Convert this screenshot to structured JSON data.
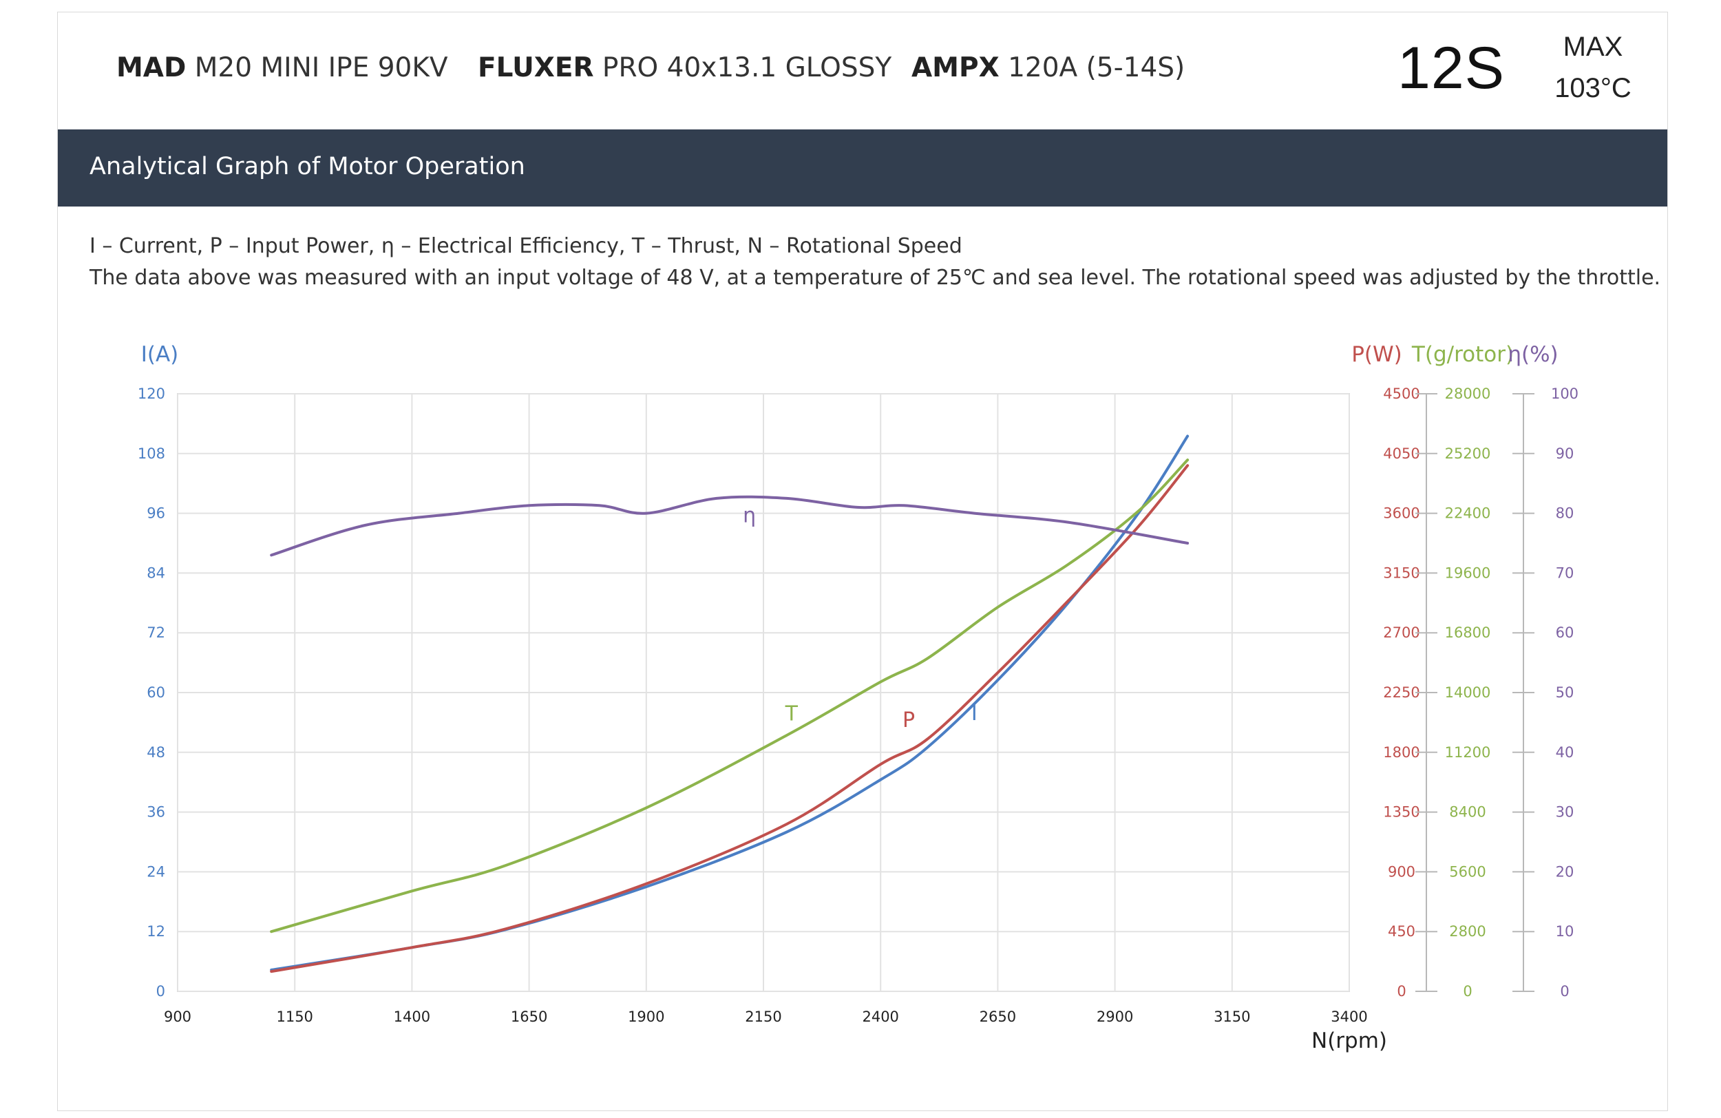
{
  "header": {
    "motor_brand": "MAD",
    "motor_model": "M20 MINI IPE 90KV",
    "prop_brand": "FLUXER",
    "prop_model": "PRO 40x13.1 GLOSSY",
    "esc_brand": "AMPX",
    "esc_model": "120A (5-14S)",
    "cells": "12S",
    "max_label": "MAX",
    "max_temp": "103°C"
  },
  "band_title": "Analytical Graph of Motor Operation",
  "legend": {
    "line1": "I – Current, P – Input Power, η – Electrical Efficiency, T – Thrust,   N – Rotational Speed",
    "line2": "The data above was measured with an input voltage of   48 V, at a temperature of 25℃ and sea level. The rotational speed was adjusted by the throttle."
  },
  "colors": {
    "current": "#4a7ec4",
    "power": "#c0504d",
    "thrust": "#8db44c",
    "efficiency": "#7d62a3",
    "header_band": "#323e4f"
  },
  "chart_data": {
    "type": "line",
    "xlabel": "N(rpm)",
    "xlim": [
      900,
      3400
    ],
    "xticks": [
      900,
      1150,
      1400,
      1650,
      1900,
      2150,
      2400,
      2650,
      2900,
      3150,
      3400
    ],
    "axes": [
      {
        "label": "I(A)",
        "side": "left",
        "lim": [
          0,
          120
        ],
        "ticks": [
          0,
          12,
          24,
          36,
          48,
          60,
          72,
          84,
          96,
          108,
          120
        ]
      },
      {
        "label": "P(W)",
        "side": "right",
        "lim": [
          0,
          4500
        ],
        "ticks": [
          0,
          450,
          900,
          1350,
          1800,
          2250,
          2700,
          3150,
          3600,
          4050,
          4500
        ]
      },
      {
        "label": "T(g/rotor)",
        "side": "right",
        "lim": [
          0,
          28000
        ],
        "ticks": [
          0,
          2800,
          5600,
          8400,
          11200,
          14000,
          16800,
          19600,
          22400,
          25200,
          28000
        ]
      },
      {
        "label": "η(%)",
        "side": "right",
        "lim": [
          0,
          100
        ],
        "ticks": [
          0,
          10,
          20,
          30,
          40,
          50,
          60,
          70,
          80,
          90,
          100
        ]
      }
    ],
    "grid": true,
    "series": [
      {
        "name": "I",
        "axis": 0,
        "color": "#4a7ec4",
        "x": [
          1100,
          1400,
          1600,
          1900,
          2200,
          2400,
          2500,
          2650,
          2800,
          2950,
          3055
        ],
        "y": [
          4.3,
          8.8,
          12.4,
          21,
          32,
          42.5,
          49,
          62.5,
          78,
          96,
          111.5
        ]
      },
      {
        "name": "P",
        "axis": 1,
        "color": "#c0504d",
        "x": [
          1100,
          1400,
          1600,
          1900,
          2200,
          2400,
          2500,
          2650,
          2800,
          2950,
          3055
        ],
        "y": [
          150,
          330,
          470,
          810,
          1260,
          1710,
          1900,
          2400,
          2940,
          3500,
          3960
        ]
      },
      {
        "name": "T",
        "axis": 2,
        "color": "#8db44c",
        "x": [
          1100,
          1400,
          1600,
          1900,
          2200,
          2400,
          2500,
          2650,
          2800,
          2950,
          3055
        ],
        "y": [
          2800,
          4700,
          5900,
          8600,
          12000,
          14500,
          15600,
          18000,
          20000,
          22500,
          24900
        ]
      },
      {
        "name": "η",
        "axis": 3,
        "color": "#7d62a3",
        "x": [
          1100,
          1300,
          1500,
          1650,
          1800,
          1900,
          2050,
          2200,
          2350,
          2450,
          2600,
          2800,
          3055
        ],
        "y": [
          73,
          78,
          80,
          81.3,
          81.3,
          80,
          82.5,
          82.5,
          81,
          81.3,
          80,
          78.5,
          75
        ]
      }
    ]
  }
}
